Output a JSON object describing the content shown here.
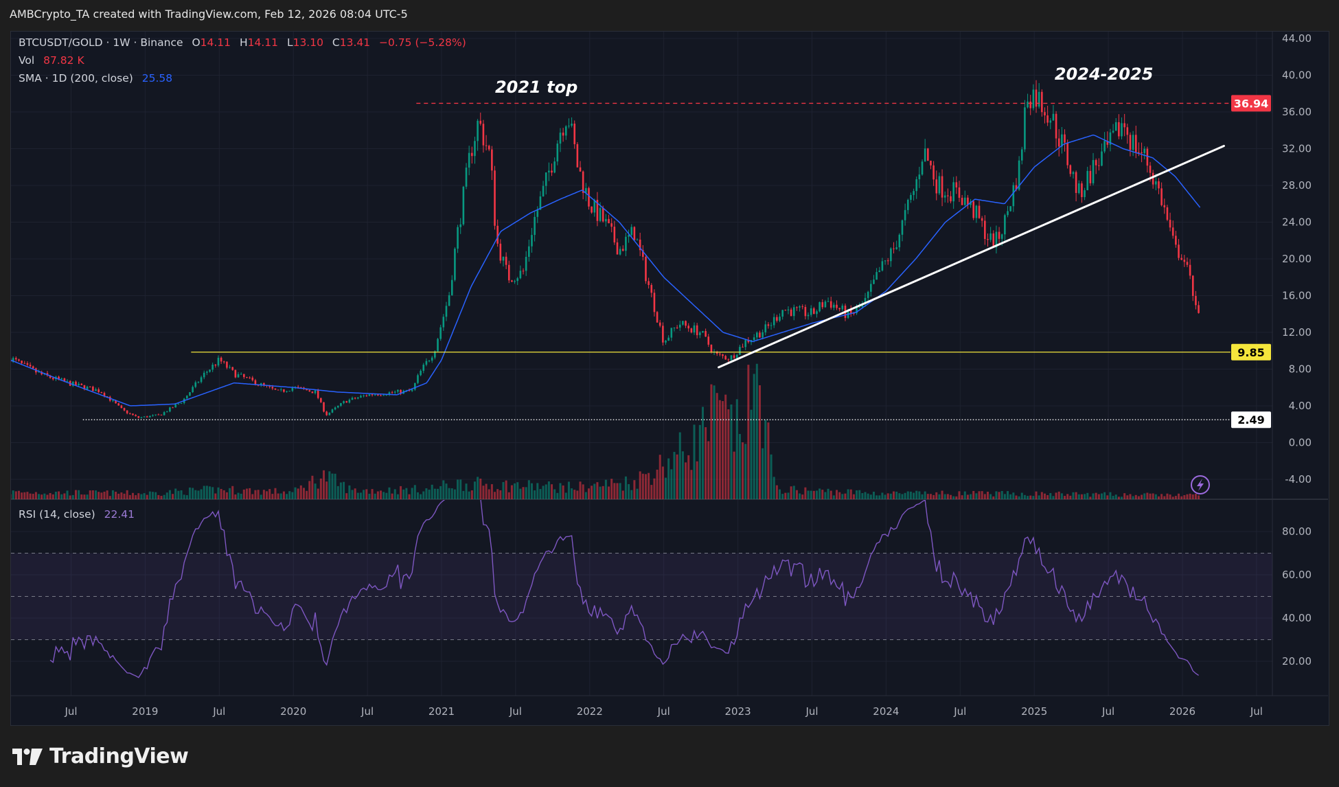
{
  "credit": "AMBCrypto_TA created with TradingView.com, Feb 12, 2026 08:04 UTC-5",
  "legend": {
    "symbol": "BTCUSDT/GOLD · 1W · Binance",
    "o_label": "O",
    "o": "14.11",
    "h_label": "H",
    "h": "14.11",
    "l_label": "L",
    "l": "13.10",
    "c_label": "C",
    "c": "13.41",
    "change": "−0.75 (−5.28%)",
    "vol_label": "Vol",
    "vol": "87.82 K",
    "sma_label": "SMA · 1D (200, close)",
    "sma": "25.58",
    "rsi_label": "RSI (14, close)",
    "rsi": "22.41"
  },
  "logo": "TradingView",
  "colors": {
    "up": "#089981",
    "down": "#f23645",
    "sma": "#2962ff",
    "rsi": "#7e57c2",
    "support": "#f5e63c",
    "resistance": "#f23645",
    "trend": "#ffffff",
    "background": "#131722"
  },
  "chart_data": {
    "type": "candlestick",
    "title": "BTCUSDT/GOLD 1W",
    "ylim": [
      -4,
      44
    ],
    "price_ticks": [
      "44.00",
      "40.00",
      "36.00",
      "32.00",
      "28.00",
      "24.00",
      "20.00",
      "16.00",
      "12.00",
      "8.00",
      "4.00",
      "0.00",
      "-4.00"
    ],
    "price_tick_values": [
      44,
      40,
      36,
      32,
      28,
      24,
      20,
      16,
      12,
      8,
      4,
      0,
      -4
    ],
    "rsi_ticks": [
      "80.00",
      "60.00",
      "40.00",
      "20.00"
    ],
    "rsi_tick_values": [
      80,
      60,
      40,
      20
    ],
    "rsi_band": [
      30,
      70
    ],
    "time_ticks": [
      {
        "t": 2018.5,
        "label": "Jul"
      },
      {
        "t": 2019.0,
        "label": "2019"
      },
      {
        "t": 2019.5,
        "label": "Jul"
      },
      {
        "t": 2020.0,
        "label": "2020"
      },
      {
        "t": 2020.5,
        "label": "Jul"
      },
      {
        "t": 2021.0,
        "label": "2021"
      },
      {
        "t": 2021.5,
        "label": "Jul"
      },
      {
        "t": 2022.0,
        "label": "2022"
      },
      {
        "t": 2022.5,
        "label": "Jul"
      },
      {
        "t": 2023.0,
        "label": "2023"
      },
      {
        "t": 2023.5,
        "label": "Jul"
      },
      {
        "t": 2024.0,
        "label": "2024"
      },
      {
        "t": 2024.5,
        "label": "Jul"
      },
      {
        "t": 2025.0,
        "label": "2025"
      },
      {
        "t": 2025.5,
        "label": "Jul"
      },
      {
        "t": 2026.0,
        "label": "2026"
      },
      {
        "t": 2026.5,
        "label": "Jul"
      }
    ],
    "price_close_keypoints": [
      [
        2018.09,
        9.2
      ],
      [
        2018.2,
        8.2
      ],
      [
        2018.3,
        7.4
      ],
      [
        2018.5,
        6.4
      ],
      [
        2018.7,
        5.6
      ],
      [
        2018.85,
        3.5
      ],
      [
        2018.95,
        2.7
      ],
      [
        2019.1,
        3.0
      ],
      [
        2019.25,
        4.5
      ],
      [
        2019.4,
        7.5
      ],
      [
        2019.5,
        9.0
      ],
      [
        2019.6,
        7.5
      ],
      [
        2019.75,
        6.5
      ],
      [
        2019.9,
        5.5
      ],
      [
        2020.0,
        6.0
      ],
      [
        2020.15,
        5.5
      ],
      [
        2020.22,
        3.0
      ],
      [
        2020.35,
        4.5
      ],
      [
        2020.5,
        5.2
      ],
      [
        2020.7,
        5.5
      ],
      [
        2020.8,
        5.6
      ],
      [
        2020.85,
        7.5
      ],
      [
        2020.95,
        10
      ],
      [
        2021.05,
        16
      ],
      [
        2021.1,
        22
      ],
      [
        2021.2,
        32
      ],
      [
        2021.25,
        35
      ],
      [
        2021.33,
        31
      ],
      [
        2021.37,
        22
      ],
      [
        2021.45,
        18
      ],
      [
        2021.55,
        18.5
      ],
      [
        2021.62,
        24
      ],
      [
        2021.7,
        28
      ],
      [
        2021.8,
        34
      ],
      [
        2021.85,
        36
      ],
      [
        2021.92,
        30
      ],
      [
        2022.0,
        26
      ],
      [
        2022.1,
        24
      ],
      [
        2022.2,
        21
      ],
      [
        2022.3,
        23
      ],
      [
        2022.4,
        17
      ],
      [
        2022.5,
        11
      ],
      [
        2022.6,
        13
      ],
      [
        2022.75,
        12
      ],
      [
        2022.85,
        9.5
      ],
      [
        2022.95,
        9.2
      ],
      [
        2023.05,
        11
      ],
      [
        2023.2,
        12.5
      ],
      [
        2023.3,
        14.5
      ],
      [
        2023.5,
        14
      ],
      [
        2023.6,
        15.5
      ],
      [
        2023.75,
        13.8
      ],
      [
        2023.85,
        15
      ],
      [
        2023.95,
        18.5
      ],
      [
        2024.05,
        21
      ],
      [
        2024.2,
        28
      ],
      [
        2024.25,
        32
      ],
      [
        2024.35,
        28
      ],
      [
        2024.5,
        27
      ],
      [
        2024.6,
        25
      ],
      [
        2024.7,
        22
      ],
      [
        2024.75,
        22
      ],
      [
        2024.8,
        24
      ],
      [
        2024.9,
        30
      ],
      [
        2024.95,
        38
      ],
      [
        2025.0,
        38
      ],
      [
        2025.1,
        36
      ],
      [
        2025.2,
        32
      ],
      [
        2025.3,
        27
      ],
      [
        2025.4,
        30
      ],
      [
        2025.5,
        32
      ],
      [
        2025.6,
        35
      ],
      [
        2025.65,
        33
      ],
      [
        2025.75,
        31
      ],
      [
        2025.85,
        27
      ],
      [
        2025.9,
        24
      ],
      [
        2025.95,
        21
      ],
      [
        2026.0,
        20.5
      ],
      [
        2026.08,
        16
      ],
      [
        2026.12,
        13.41
      ]
    ],
    "sma_keypoints": [
      [
        2018.09,
        9
      ],
      [
        2018.4,
        7
      ],
      [
        2018.9,
        4
      ],
      [
        2019.2,
        4.2
      ],
      [
        2019.6,
        6.5
      ],
      [
        2020.0,
        6
      ],
      [
        2020.3,
        5.5
      ],
      [
        2020.7,
        5.2
      ],
      [
        2020.9,
        6.5
      ],
      [
        2021.0,
        9
      ],
      [
        2021.2,
        17
      ],
      [
        2021.4,
        23
      ],
      [
        2021.6,
        25
      ],
      [
        2021.8,
        26.5
      ],
      [
        2021.95,
        27.5
      ],
      [
        2022.2,
        24
      ],
      [
        2022.5,
        18
      ],
      [
        2022.7,
        15
      ],
      [
        2022.9,
        12
      ],
      [
        2023.1,
        11
      ],
      [
        2023.5,
        13
      ],
      [
        2023.8,
        14.2
      ],
      [
        2024.0,
        16.5
      ],
      [
        2024.2,
        20
      ],
      [
        2024.4,
        24
      ],
      [
        2024.6,
        26.5
      ],
      [
        2024.8,
        26
      ],
      [
        2025.0,
        30
      ],
      [
        2025.2,
        32.5
      ],
      [
        2025.4,
        33.5
      ],
      [
        2025.6,
        32
      ],
      [
        2025.8,
        31
      ],
      [
        2025.95,
        29
      ],
      [
        2026.12,
        25.58
      ]
    ],
    "volume_k_keypoints": [
      [
        2018.09,
        18
      ],
      [
        2019.0,
        15
      ],
      [
        2019.5,
        25
      ],
      [
        2020.0,
        18
      ],
      [
        2020.2,
        60
      ],
      [
        2020.4,
        22
      ],
      [
        2020.9,
        25
      ],
      [
        2021.1,
        40
      ],
      [
        2021.5,
        35
      ],
      [
        2021.9,
        30
      ],
      [
        2022.3,
        45
      ],
      [
        2022.5,
        90
      ],
      [
        2022.7,
        140
      ],
      [
        2022.85,
        220
      ],
      [
        2023.0,
        170
      ],
      [
        2023.15,
        300
      ],
      [
        2023.25,
        25
      ],
      [
        2024.0,
        15
      ],
      [
        2025.0,
        14
      ],
      [
        2026.12,
        10
      ]
    ],
    "levels": [
      {
        "label": "36.94",
        "value": 36.94,
        "from": 2020.83,
        "style": "dashed",
        "color": "#f23645"
      },
      {
        "label": "9.85",
        "value": 9.85,
        "from": 2019.31,
        "style": "solid",
        "color": "#f5e63c"
      },
      {
        "label": "2.49",
        "value": 2.49,
        "from": 2018.58,
        "style": "dotted",
        "color": "#ffffff"
      }
    ],
    "trendline": {
      "from": [
        2022.87,
        8.2
      ],
      "to": [
        2026.28,
        32.3
      ]
    },
    "annotations": [
      {
        "text": "2021 top",
        "t": 2021.64,
        "value": 38.7
      },
      {
        "text": "2024-2025",
        "t": 2025.47,
        "value": 40.1
      }
    ]
  }
}
